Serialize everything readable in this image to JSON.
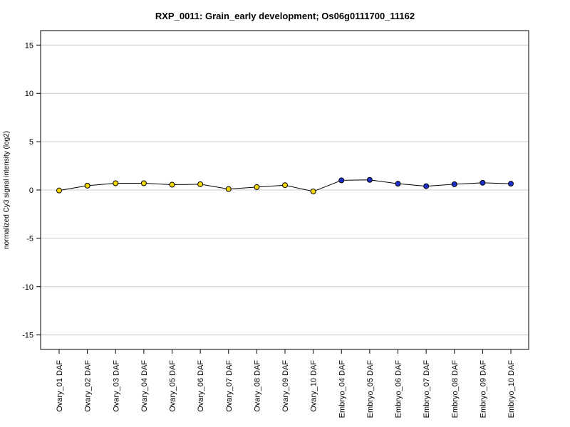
{
  "chart_data": {
    "type": "line",
    "title": "RXP_0011: Grain_early development; Os06g0111700_11162",
    "xlabel": "",
    "ylabel": "normalized Cy3 signal intensity (log2)",
    "ylim": [
      -16.5,
      16.5
    ],
    "yticks": [
      15,
      10,
      5,
      0,
      -5,
      -10,
      -15
    ],
    "ytick_labels": [
      "15",
      "10",
      "5",
      "0",
      "-5",
      "-10",
      "-15"
    ],
    "grid": true,
    "categories": [
      "Ovary_01 DAF",
      "Ovary_02 DAF",
      "Ovary_03 DAF",
      "Ovary_04 DAF",
      "Ovary_05 DAF",
      "Ovary_06 DAF",
      "Ovary_07 DAF",
      "Ovary_08 DAF",
      "Ovary_09 DAF",
      "Ovary_10 DAF",
      "Embryo_04 DAF",
      "Embryo_05 DAF",
      "Embryo_06 DAF",
      "Embryo_07 DAF",
      "Embryo_08 DAF",
      "Embryo_09 DAF",
      "Embryo_10 DAF"
    ],
    "values": [
      -0.05,
      0.45,
      0.7,
      0.7,
      0.55,
      0.6,
      0.1,
      0.3,
      0.5,
      -0.15,
      1.0,
      1.05,
      0.65,
      0.4,
      0.6,
      0.75,
      0.65
    ],
    "point_colors": [
      "#f5d800",
      "#f5d800",
      "#f5d800",
      "#f5d800",
      "#f5d800",
      "#f5d800",
      "#f5d800",
      "#f5d800",
      "#f5d800",
      "#f5d800",
      "#1f2fcc",
      "#1f2fcc",
      "#1f2fcc",
      "#1f2fcc",
      "#1f2fcc",
      "#1f2fcc",
      "#1f2fcc"
    ],
    "line_color": "#000000",
    "grid_color": "#cccccc"
  }
}
